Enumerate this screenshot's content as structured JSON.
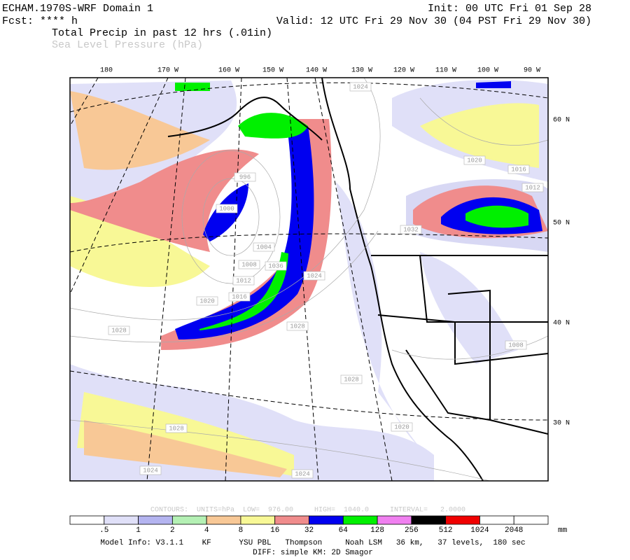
{
  "header": {
    "model": "ECHAM.1970S-WRF Domain 1",
    "fcst": "Fcst: **** h",
    "init": "Init: 00 UTC Fri 01 Sep 28",
    "valid": "Valid: 12 UTC Fri 29 Nov 30 (04 PST Fri 29 Nov 30)",
    "field1": "Total Precip in past 12 hrs (.01in)",
    "field2": "Sea Level Pressure (hPa)"
  },
  "map": {
    "lon_labels": [
      "180",
      "170 W",
      "160 W",
      "150 W",
      "140 W",
      "130 W",
      "120 W",
      "110 W",
      "100 W",
      "90 W"
    ],
    "lat_labels": [
      "60 N",
      "50 N",
      "40 N",
      "30 N"
    ],
    "isobar_labels": [
      "1024",
      "1020",
      "1016",
      "1012",
      "1032",
      "1000",
      "996",
      "1004",
      "1008",
      "1036",
      "1012",
      "1016",
      "1020",
      "1024",
      "1028",
      "1028",
      "1028",
      "1028",
      "1024",
      "1024",
      "1020",
      "1008"
    ]
  },
  "footer": {
    "contours": "CONTOURS:  UNITS=hPa  LOW=  976.00     HIGH=  1040.0     INTERVAL=   2.0000",
    "colorbar_labels": [
      ".5",
      "1",
      "2",
      "4",
      "8",
      "16",
      "32",
      "64",
      "128",
      "256",
      "512",
      "1024",
      "2048"
    ],
    "unit": "mm",
    "model_info": "Model Info: V3.1.1    KF      YSU PBL   Thompson     Noah LSM   36 km,   37 levels,  180 sec",
    "diff": "DIFF: simple KM: 2D Smagor"
  }
}
